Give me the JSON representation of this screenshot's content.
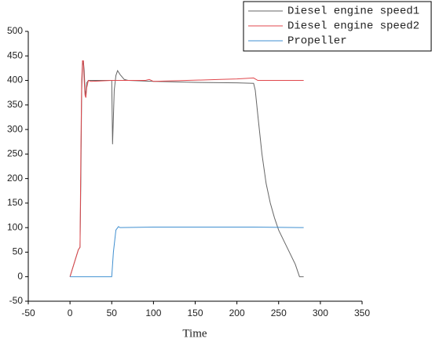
{
  "chart_data": {
    "type": "line",
    "x_label": "Time",
    "xlim": [
      -50,
      350
    ],
    "xticks": [
      -50,
      0,
      50,
      100,
      150,
      200,
      250,
      300,
      350
    ],
    "ylim": [
      -50,
      500
    ],
    "yticks": [
      -50,
      0,
      50,
      100,
      150,
      200,
      250,
      300,
      350,
      400,
      450,
      500
    ],
    "legend": "top-right",
    "series": [
      {
        "name": "Diesel engine speed1",
        "color": "#666666",
        "x": [
          0,
          10,
          12,
          13,
          14,
          15,
          16,
          17,
          18,
          19,
          20,
          22,
          50,
          51,
          53,
          55,
          57,
          60,
          65,
          70,
          100,
          150,
          200,
          220,
          222,
          225,
          230,
          235,
          240,
          245,
          250,
          260,
          270,
          275,
          280
        ],
        "values": [
          0,
          55,
          60,
          200,
          380,
          430,
          440,
          420,
          380,
          370,
          395,
          400,
          400,
          270,
          380,
          410,
          420,
          412,
          402,
          400,
          398,
          396,
          395,
          394,
          380,
          330,
          250,
          190,
          150,
          120,
          95,
          60,
          25,
          0,
          0
        ]
      },
      {
        "name": "Diesel engine speed2",
        "color": "#e0474c",
        "x": [
          0,
          10,
          12,
          13,
          14,
          15,
          16,
          17,
          18,
          19,
          20,
          22,
          25,
          50,
          90,
          95,
          100,
          140,
          180,
          200,
          220,
          225,
          280
        ],
        "values": [
          0,
          55,
          60,
          250,
          400,
          440,
          440,
          400,
          370,
          365,
          385,
          400,
          398,
          400,
          400,
          402,
          398,
          400,
          402,
          403,
          405,
          400,
          400
        ]
      },
      {
        "name": "Propeller",
        "color": "#3f8fd0",
        "x": [
          0,
          50,
          52,
          55,
          58,
          60,
          100,
          200,
          220,
          280
        ],
        "values": [
          0,
          0,
          50,
          95,
          102,
          100,
          101,
          101,
          101,
          100
        ]
      }
    ]
  }
}
